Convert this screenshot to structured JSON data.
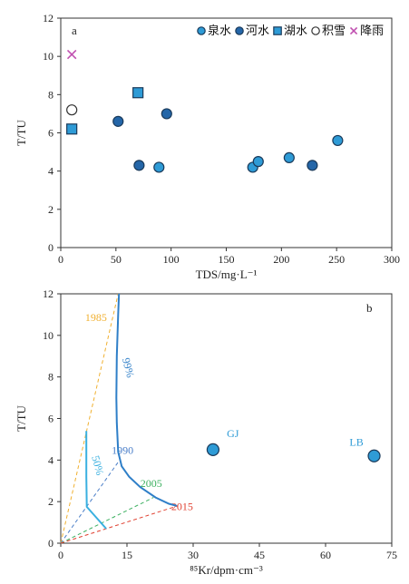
{
  "colors": {
    "spring": "#2e9bd6",
    "river": "#2466a8",
    "lake": "#2e9bd6",
    "snow": "#ffffff",
    "rain": "#c050b0",
    "y1985": "#f0b030",
    "y1990": "#4a7ec8",
    "y2005": "#3cb060",
    "y2015": "#e04030",
    "curve99": "#2f7fc8",
    "curve50": "#3ab0e0",
    "site": "#2e9bd6"
  },
  "chart_data": [
    {
      "type": "scatter",
      "panel_label": "a",
      "xlabel": "TDS/mg·L⁻¹",
      "ylabel": "T/TU",
      "xlim": [
        0,
        300
      ],
      "ylim": [
        0,
        12
      ],
      "xticks": [
        0,
        50,
        100,
        150,
        200,
        250,
        300
      ],
      "yticks": [
        0,
        2,
        4,
        6,
        8,
        10,
        12
      ],
      "grid": false,
      "legend_position": "top-right",
      "series": [
        {
          "name": "泉水",
          "marker": "circle",
          "color_key": "spring",
          "x": [
            89,
            174,
            179,
            207,
            251
          ],
          "y": [
            4.2,
            4.2,
            4.5,
            4.7,
            5.6
          ]
        },
        {
          "name": "河水",
          "marker": "circle",
          "color_key": "river",
          "x": [
            52,
            71,
            96,
            228
          ],
          "y": [
            6.6,
            4.3,
            7.0,
            4.3
          ]
        },
        {
          "name": "湖水",
          "marker": "square",
          "color_key": "lake",
          "x": [
            10,
            70
          ],
          "y": [
            6.2,
            8.1
          ]
        },
        {
          "name": "积雪",
          "marker": "open-circle",
          "color_key": "snow",
          "x": [
            10
          ],
          "y": [
            7.2
          ]
        },
        {
          "name": "降雨",
          "marker": "cross",
          "color_key": "rain",
          "x": [
            10
          ],
          "y": [
            10.1
          ]
        }
      ]
    },
    {
      "type": "line",
      "panel_label": "b",
      "xlabel": "⁸⁵Kr/dpm·cm⁻³",
      "ylabel": "T/TU",
      "xlim": [
        0,
        75
      ],
      "ylim": [
        0,
        12
      ],
      "xticks": [
        0,
        15,
        30,
        45,
        60,
        75
      ],
      "yticks": [
        0,
        2,
        4,
        6,
        8,
        10,
        12
      ],
      "grid": false,
      "lines": [
        {
          "name": "1985",
          "color_key": "y1985",
          "style": "dashed",
          "x": [
            0,
            13
          ],
          "y": [
            0,
            12
          ],
          "label_at": [
            8,
            10.7
          ]
        },
        {
          "name": "1990",
          "color_key": "y1990",
          "style": "dashed",
          "x": [
            0,
            13
          ],
          "y": [
            0,
            3.9
          ],
          "label_at": [
            14,
            4.3
          ]
        },
        {
          "name": "2005",
          "color_key": "y2005",
          "style": "dashed",
          "x": [
            0,
            21
          ],
          "y": [
            0,
            2.2
          ],
          "label_at": [
            20.5,
            2.7
          ]
        },
        {
          "name": "2015",
          "color_key": "y2015",
          "style": "dashed",
          "x": [
            0,
            26.5
          ],
          "y": [
            0,
            1.8
          ],
          "label_at": [
            27.5,
            1.6
          ]
        },
        {
          "name": "99%",
          "color_key": "curve99",
          "style": "solid",
          "x": [
            13.2,
            13.0,
            12.7,
            12.6,
            12.7,
            13.0,
            13.8,
            15.5,
            18.0,
            21.5,
            24.5,
            26.3
          ],
          "y": [
            12.0,
            11.0,
            9.0,
            7.0,
            5.8,
            4.4,
            3.7,
            3.2,
            2.7,
            2.2,
            1.9,
            1.8
          ],
          "label_at": [
            14.5,
            8.4
          ]
        },
        {
          "name": "50%",
          "color_key": "curve50",
          "style": "solid",
          "x": [
            5.8,
            5.8,
            5.9,
            10.3
          ],
          "y": [
            5.4,
            3.2,
            1.75,
            0.7
          ],
          "label_at": [
            7.6,
            3.7
          ]
        }
      ],
      "points": [
        {
          "name": "GJ",
          "x": 34.5,
          "y": 4.5,
          "label_at": [
            39,
            5.1
          ]
        },
        {
          "name": "LB",
          "x": 71,
          "y": 4.2,
          "label_at": [
            67,
            4.7
          ]
        }
      ]
    }
  ]
}
